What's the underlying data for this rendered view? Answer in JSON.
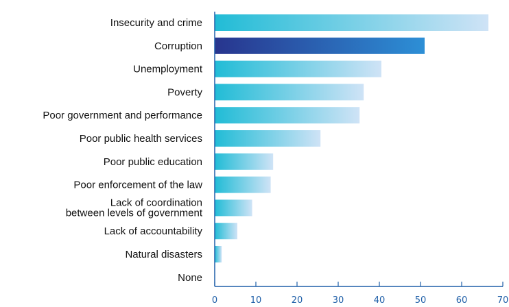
{
  "chart_data": {
    "type": "bar",
    "orientation": "horizontal",
    "title": "",
    "xlabel": "",
    "ylabel": "",
    "categories": [
      "Insecurity and crime",
      "Corruption",
      "Unemployment",
      "Poverty",
      "Poor government and performance",
      "Poor public health services",
      "Poor public education",
      "Poor enforcement of the law",
      "Lack of coordination between levels of government",
      "Lack of accountability",
      "Natural disasters",
      "None"
    ],
    "values": [
      66.5,
      51,
      40.5,
      36.2,
      35.2,
      25.7,
      14.2,
      13.6,
      9.1,
      5.5,
      1.7,
      0
    ],
    "highlight_index": 1,
    "xlim": [
      0,
      70
    ],
    "xticks": [
      0,
      10,
      20,
      30,
      40,
      50,
      60,
      70
    ],
    "grid": false,
    "legend": "none",
    "colors": {
      "bar_start": "#21bcd6",
      "bar_end": "#cfe3f6",
      "highlight_start": "#28358e",
      "highlight_end": "#2d8fd6",
      "axis": "#1f5fa8",
      "tick_text": "#1f5fa8"
    }
  }
}
